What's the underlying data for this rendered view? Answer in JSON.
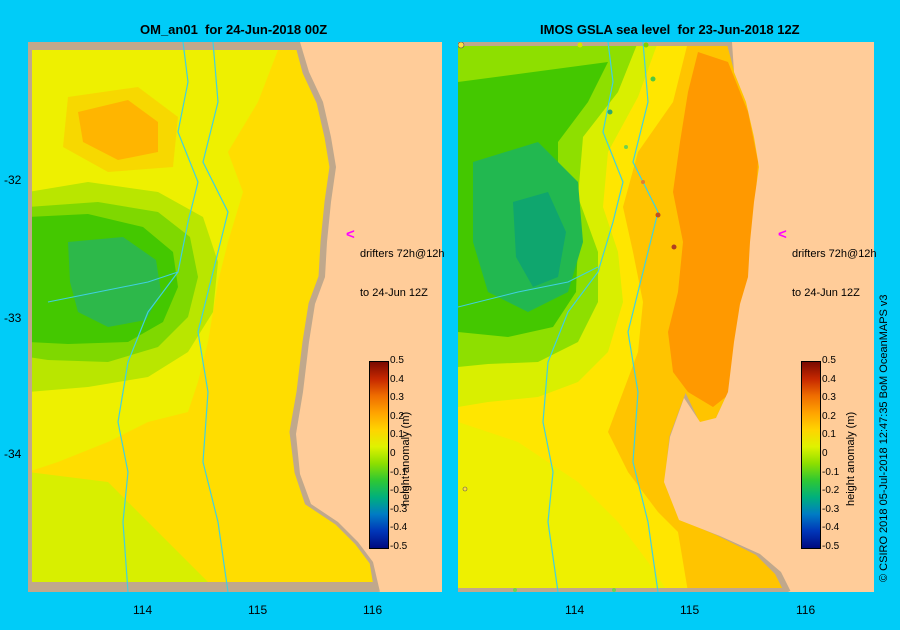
{
  "panels": {
    "left": {
      "title": "OM_an01  for 24-Jun-2018 00Z"
    },
    "right": {
      "title": "IMOS GSLA sea level  for 23-Jun-2018 12Z"
    }
  },
  "axes": {
    "lat_ticks": [
      "-32",
      "-33",
      "-34"
    ],
    "lon_ticks": [
      "114",
      "115",
      "116"
    ]
  },
  "annotation": {
    "line1": "drifters 72h@12h",
    "line2": "to 24-Jun 12Z",
    "arrow": "<"
  },
  "colorbar": {
    "label": "height anomaly (m)",
    "ticks": [
      "0.5",
      "0.4",
      "0.3",
      "0.2",
      "0.1",
      "0",
      "-0.1",
      "-0.2",
      "-0.3",
      "-0.4",
      "-0.5"
    ],
    "colors": [
      "#7a0a00",
      "#c62800",
      "#ef6d00",
      "#ffa300",
      "#ffd400",
      "#dff200",
      "#8edf00",
      "#2fc832",
      "#00b07c",
      "#007cc4",
      "#0036b8",
      "#000a80"
    ]
  },
  "credit": "© CSIRO 2018   05-Jul-2018 12:47:35 BoM OceanMAPS v3",
  "colors": {
    "background": "#00ccf8",
    "land": "#ffcc99",
    "coast": "#c0a88c",
    "river": "#40d0e0",
    "drifter_arrow": "#ff00ff"
  }
}
